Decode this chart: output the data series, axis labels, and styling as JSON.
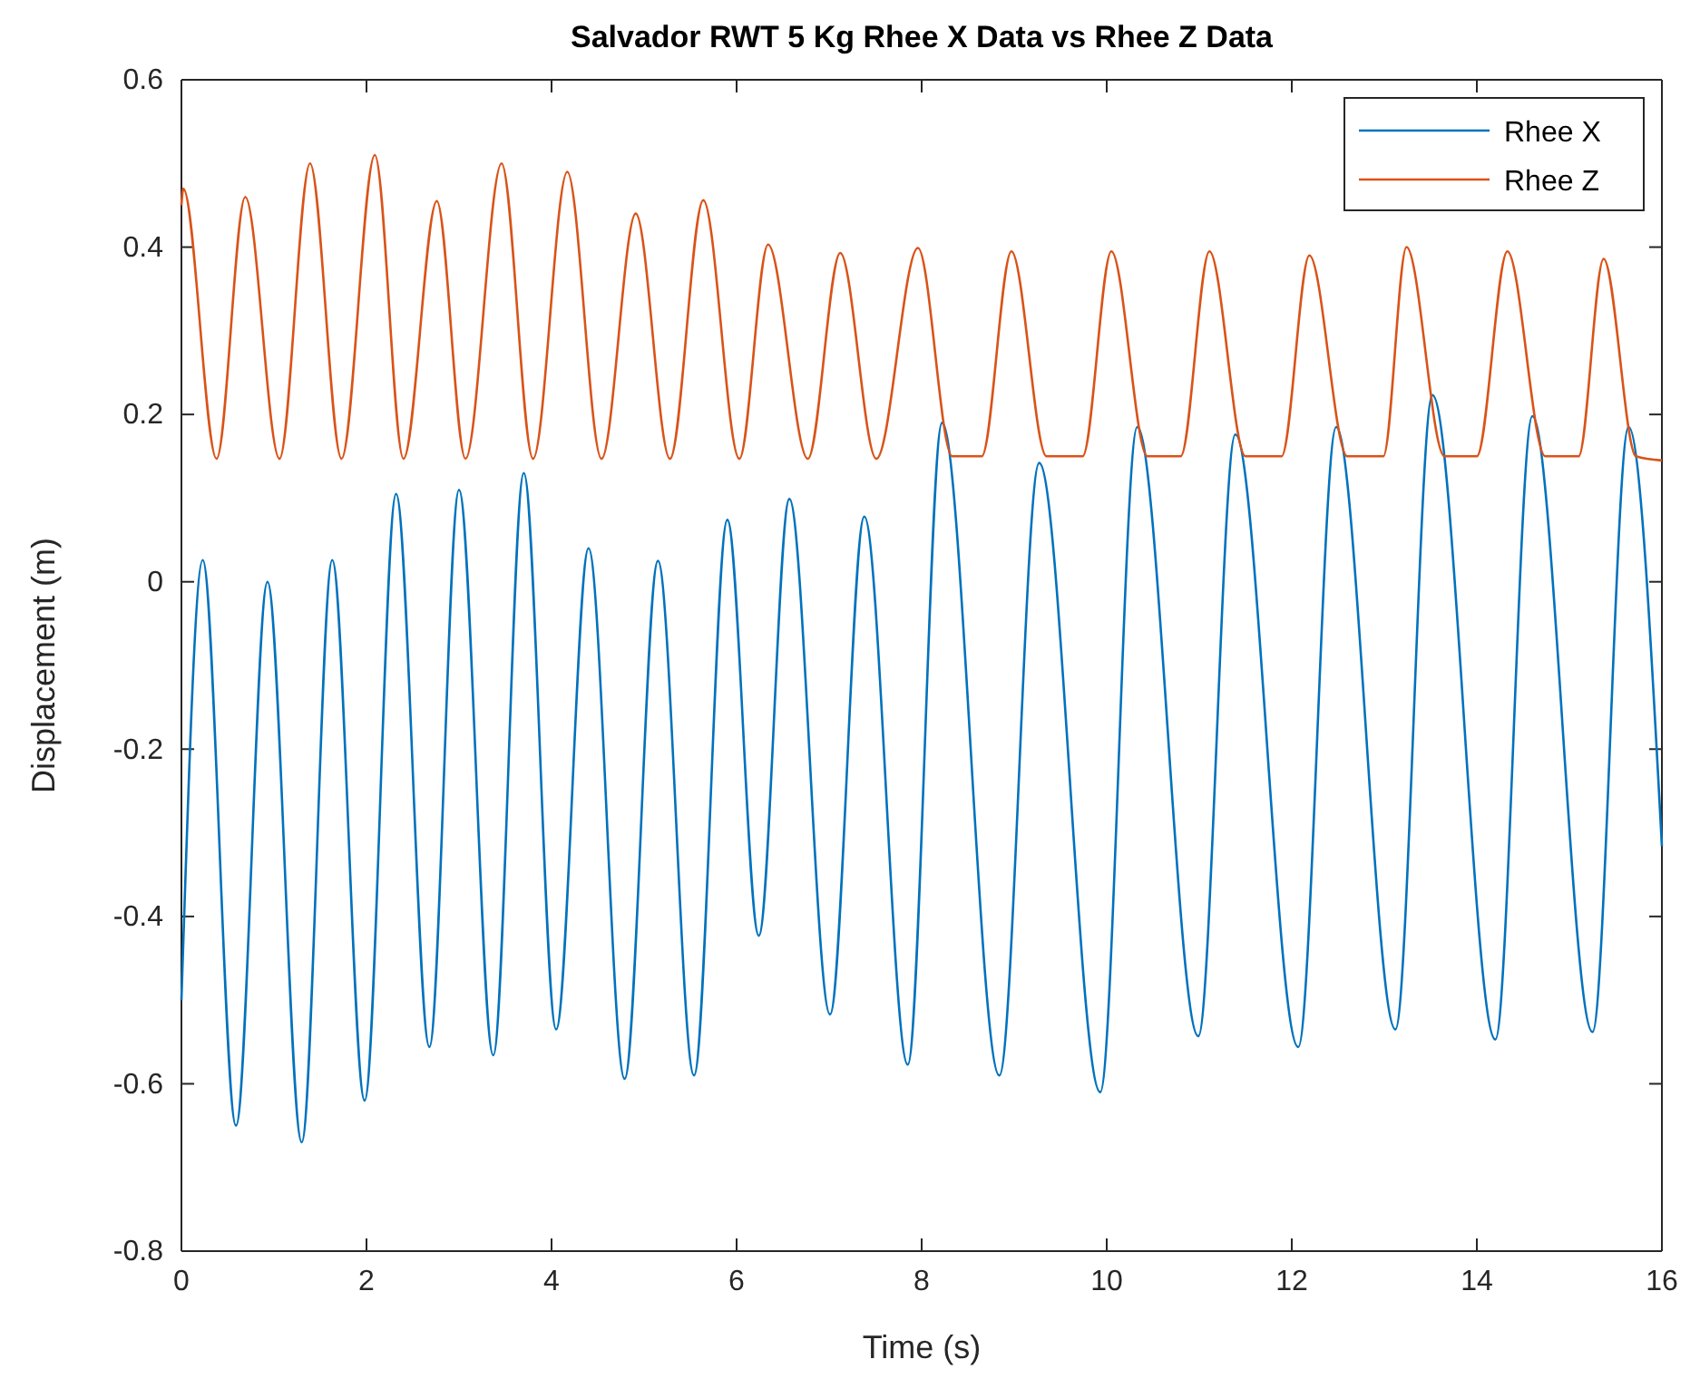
{
  "chart_data": {
    "type": "line",
    "title": "Salvador RWT 5 Kg Rhee X Data vs Rhee Z Data",
    "xlabel": "Time (s)",
    "ylabel": "Displacement (m)",
    "xlim": [
      0,
      16
    ],
    "ylim": [
      -0.8,
      0.6
    ],
    "xticks": [
      0,
      2,
      4,
      6,
      8,
      10,
      12,
      14,
      16
    ],
    "yticks": [
      -0.8,
      -0.6,
      -0.4,
      -0.2,
      0,
      0.2,
      0.4,
      0.6
    ],
    "grid": false,
    "legend": "top right",
    "marker": "none",
    "line_style": "solid",
    "series": [
      {
        "name": "Rhee X",
        "color": "#0072bd",
        "x": [
          0,
          0.23,
          0.59,
          0.93,
          1.3,
          1.63,
          1.98,
          2.32,
          2.68,
          3.0,
          3.37,
          3.7,
          4.05,
          4.4,
          4.79,
          5.15,
          5.54,
          5.9,
          6.24,
          6.57,
          7.01,
          7.38,
          7.85,
          8.22,
          8.84,
          9.27,
          9.93,
          10.33,
          10.99,
          11.39,
          12.07,
          12.48,
          13.12,
          13.52,
          14.2,
          14.6,
          15.25,
          15.64,
          16
        ],
        "values": [
          -0.5,
          0.026,
          -0.65,
          0.0,
          -0.67,
          0.026,
          -0.62,
          0.105,
          -0.556,
          0.11,
          -0.566,
          0.13,
          -0.535,
          0.04,
          -0.594,
          0.025,
          -0.59,
          0.074,
          -0.423,
          0.099,
          -0.517,
          0.078,
          -0.577,
          0.19,
          -0.59,
          0.142,
          -0.61,
          0.185,
          -0.543,
          0.176,
          -0.556,
          0.185,
          -0.535,
          0.223,
          -0.547,
          0.198,
          -0.538,
          0.185,
          -0.316
        ]
      },
      {
        "name": "Rhee Z",
        "color": "#d95319",
        "x": [
          0,
          0.02,
          0.38,
          0.69,
          1.06,
          1.39,
          1.73,
          2.09,
          2.4,
          2.76,
          3.07,
          3.46,
          3.8,
          4.17,
          4.54,
          4.91,
          5.28,
          5.64,
          6.03,
          6.34,
          6.77,
          7.12,
          7.51,
          7.96,
          8.33,
          8.65,
          8.97,
          9.35,
          9.74,
          10.05,
          10.44,
          10.8,
          11.11,
          11.5,
          11.89,
          12.19,
          12.6,
          12.99,
          13.24,
          13.65,
          14.0,
          14.33,
          14.74,
          15.1,
          15.37,
          15.72,
          16
        ],
        "values": [
          0.45,
          0.47,
          0.147,
          0.46,
          0.147,
          0.5,
          0.147,
          0.51,
          0.147,
          0.455,
          0.147,
          0.5,
          0.147,
          0.49,
          0.147,
          0.44,
          0.147,
          0.456,
          0.147,
          0.403,
          0.147,
          0.393,
          0.147,
          0.399,
          0.15,
          0.15,
          0.395,
          0.15,
          0.15,
          0.395,
          0.15,
          0.15,
          0.395,
          0.15,
          0.15,
          0.39,
          0.15,
          0.15,
          0.4,
          0.15,
          0.15,
          0.395,
          0.15,
          0.15,
          0.386,
          0.15,
          0.145
        ]
      }
    ]
  }
}
